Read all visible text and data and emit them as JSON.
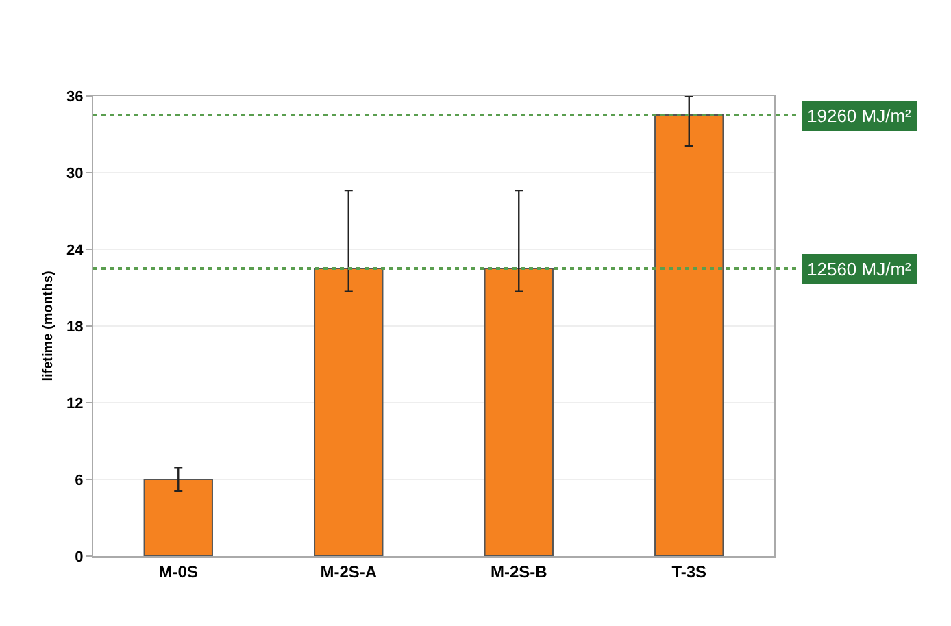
{
  "chart_data": {
    "type": "bar",
    "ylabel": "lifetime (months)",
    "categories": [
      "M-0S",
      "M-2S-A",
      "M-2S-B",
      "T-3S"
    ],
    "values": [
      6,
      22.5,
      22.5,
      34.5
    ],
    "errors": [
      [
        5.1,
        6.9
      ],
      [
        20.7,
        28.6
      ],
      [
        20.7,
        28.6
      ],
      [
        32.1,
        36
      ]
    ],
    "color": "#f58220",
    "ylim": [
      0,
      36
    ],
    "yticks": [
      0,
      6,
      12,
      18,
      24,
      30,
      36
    ],
    "grid": "y",
    "ref_lines": [
      {
        "axis": "y",
        "value": 22.5,
        "label": "12560 MJ/m²",
        "color": "#5a9e4f",
        "line_style": "dotted"
      },
      {
        "axis": "y",
        "value": 34.5,
        "label": "19260 MJ/m²",
        "color": "#5a9e4f",
        "line_style": "dotted"
      }
    ]
  }
}
